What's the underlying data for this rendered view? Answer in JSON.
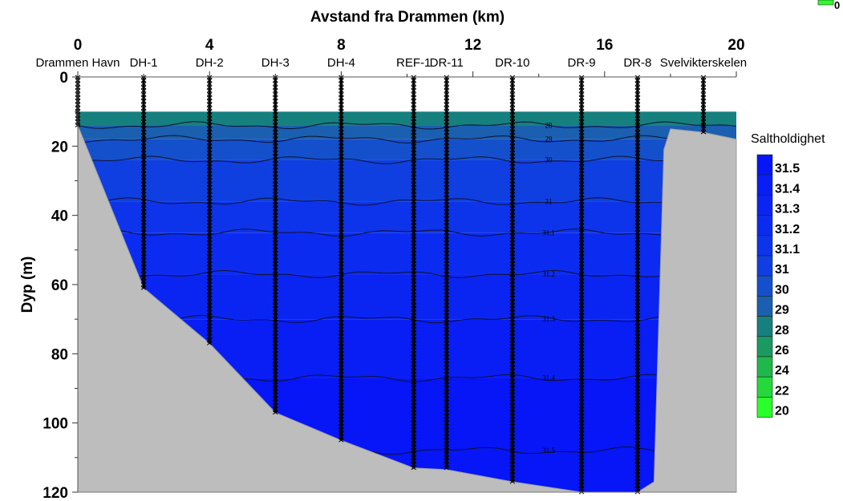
{
  "chart_data": {
    "type": "heatmap",
    "title": "",
    "xlabel": "Avstand fra Drammen (km)",
    "ylabel": "Dyp (m)",
    "xlim": [
      0,
      20
    ],
    "ylim": [
      120,
      0
    ],
    "x_ticks": [
      0,
      4,
      8,
      12,
      16,
      20
    ],
    "y_ticks": [
      0,
      20,
      40,
      60,
      80,
      100,
      120
    ],
    "colorbar": {
      "title": "Saltholdighet",
      "levels": [
        20,
        22,
        24,
        26,
        28,
        29,
        30,
        31,
        31.1,
        31.2,
        31.3,
        31.4,
        31.5
      ],
      "colors": [
        "#2bff2b",
        "#24d93a",
        "#20b84a",
        "#1a9a62",
        "#16807f",
        "#1a5fb0",
        "#1450cc",
        "#0f3fe0",
        "#0d34ea",
        "#0b2cf0",
        "#0a25f2",
        "#081ef4",
        "#0616f6"
      ],
      "top_label": "0"
    },
    "contours": [
      {
        "level": "28",
        "depth": 14,
        "label_x": 14.3
      },
      {
        "level": "29",
        "depth": 18,
        "label_x": 14.3
      },
      {
        "level": "30",
        "depth": 24,
        "label_x": 14.3
      },
      {
        "level": "31",
        "depth": 36,
        "label_x": 14.3
      },
      {
        "level": "31.1",
        "depth": 45,
        "label_x": 14.3
      },
      {
        "level": "31.2",
        "depth": 57,
        "label_x": 14.3
      },
      {
        "level": "31.3",
        "depth": 70,
        "label_x": 14.3
      },
      {
        "level": "31.4",
        "depth": 87,
        "label_x": 14.3
      },
      {
        "level": "31.5",
        "depth": 108,
        "label_x": 14.3
      }
    ],
    "stations": [
      {
        "name": "Drammen Havn",
        "x": 0.0,
        "max_depth": 14
      },
      {
        "name": "DH-1",
        "x": 2.0,
        "max_depth": 61
      },
      {
        "name": "DH-2",
        "x": 4.0,
        "max_depth": 77
      },
      {
        "name": "DH-3",
        "x": 6.0,
        "max_depth": 97
      },
      {
        "name": "DH-4",
        "x": 8.0,
        "max_depth": 105
      },
      {
        "name": "REF-1",
        "x": 10.2,
        "max_depth": 113
      },
      {
        "name": "DR-11",
        "x": 11.2,
        "max_depth": 113
      },
      {
        "name": "DR-10",
        "x": 13.2,
        "max_depth": 117
      },
      {
        "name": "DR-9",
        "x": 15.3,
        "max_depth": 120
      },
      {
        "name": "DR-8",
        "x": 17.0,
        "max_depth": 120
      },
      {
        "name": "Svelvikterskelen",
        "x": 19.0,
        "max_depth": 16
      }
    ],
    "bathymetry": [
      [
        0,
        0
      ],
      [
        0,
        14
      ],
      [
        2,
        61
      ],
      [
        4,
        77
      ],
      [
        6,
        97
      ],
      [
        8,
        105
      ],
      [
        10.2,
        113
      ],
      [
        11.2,
        113.5
      ],
      [
        13.2,
        117
      ],
      [
        15.3,
        120
      ],
      [
        17.0,
        120
      ],
      [
        17.5,
        117
      ],
      [
        17.8,
        21
      ],
      [
        18.0,
        15
      ],
      [
        19.0,
        16
      ],
      [
        20,
        18
      ],
      [
        20,
        0
      ]
    ]
  }
}
